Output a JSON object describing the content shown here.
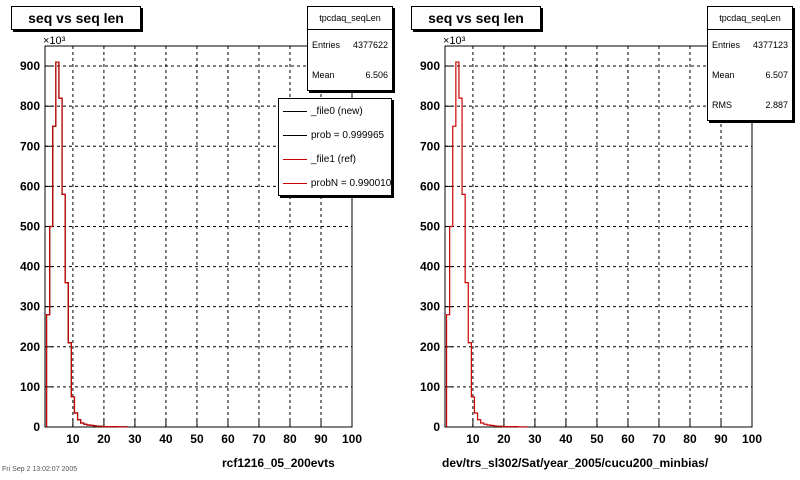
{
  "footer": "Fri Sep 2 13:02:07 2005",
  "chart_data": [
    {
      "type": "bar",
      "title": "seq vs seq len",
      "xlabel": "rcf1216_05_200evts",
      "ylabel": "",
      "multiplier": "×10³",
      "xlim": [
        1,
        100
      ],
      "ylim": [
        0,
        950
      ],
      "x_ticks": [
        "10",
        "20",
        "30",
        "40",
        "50",
        "60",
        "70",
        "80",
        "90",
        "100"
      ],
      "y_ticks": [
        "0",
        "100",
        "200",
        "300",
        "400",
        "500",
        "600",
        "700",
        "800",
        "900"
      ],
      "grid": true,
      "stats": {
        "name": "tpcdaq_seqLen",
        "entries_label": "Entries",
        "entries": "4377622",
        "mean_label": "Mean",
        "mean": "6.506"
      },
      "legend": [
        {
          "label": "_file0 (new)",
          "color": "#000000"
        },
        {
          "label": "prob = 0.999965",
          "color": "#000000"
        },
        {
          "label": "_file1 (ref)",
          "color": "#cc0000"
        },
        {
          "label": "probN = 0.990010",
          "color": "#cc0000"
        }
      ],
      "series": [
        {
          "name": "_file0 (new)",
          "color": "#000000",
          "x": [
            2,
            3,
            4,
            5,
            6,
            7,
            8,
            9,
            10,
            11,
            12,
            13,
            14,
            15,
            16,
            17,
            18,
            19,
            20,
            21,
            22,
            23,
            24,
            25,
            26,
            27
          ],
          "y": [
            280,
            500,
            750,
            910,
            820,
            580,
            360,
            210,
            75,
            35,
            18,
            10,
            7,
            5,
            4,
            3,
            2,
            2,
            1,
            1,
            1,
            1,
            1,
            0.5,
            0.5,
            0.5
          ]
        },
        {
          "name": "_file1 (ref)",
          "color": "#cc0000",
          "x": [
            2,
            3,
            4,
            5,
            6,
            7,
            8,
            9,
            10,
            11,
            12,
            13,
            14,
            15,
            16,
            17,
            18,
            19,
            20,
            21,
            22,
            23,
            24,
            25,
            26,
            27
          ],
          "y": [
            280,
            500,
            750,
            910,
            820,
            580,
            360,
            210,
            75,
            35,
            18,
            10,
            7,
            5,
            4,
            3,
            2,
            2,
            1,
            1,
            1,
            1,
            1,
            0.5,
            0.5,
            0.5
          ]
        }
      ]
    },
    {
      "type": "bar",
      "title": "seq vs seq len",
      "xlabel": "dev/trs_sl302/Sat/year_2005/cucu200_minbias/",
      "ylabel": "",
      "multiplier": "×10³",
      "xlim": [
        1,
        100
      ],
      "ylim": [
        0,
        950
      ],
      "x_ticks": [
        "10",
        "20",
        "30",
        "40",
        "50",
        "60",
        "70",
        "80",
        "90",
        "100"
      ],
      "y_ticks": [
        "0",
        "100",
        "200",
        "300",
        "400",
        "500",
        "600",
        "700",
        "800",
        "900"
      ],
      "grid": true,
      "stats": {
        "name": "tpcdaq_seqLen",
        "entries_label": "Entries",
        "entries": "4377123",
        "mean_label": "Mean",
        "mean": "6.507",
        "rms_label": "RMS",
        "rms": "2.887"
      },
      "series": [
        {
          "name": "",
          "color": "#cc0000",
          "x": [
            2,
            3,
            4,
            5,
            6,
            7,
            8,
            9,
            10,
            11,
            12,
            13,
            14,
            15,
            16,
            17,
            18,
            19,
            20,
            21,
            22,
            23,
            24,
            25,
            26,
            27
          ],
          "y": [
            280,
            500,
            750,
            910,
            820,
            580,
            360,
            210,
            75,
            35,
            18,
            10,
            7,
            5,
            4,
            3,
            2,
            2,
            1,
            1,
            1,
            1,
            1,
            0.5,
            0.5,
            0.5
          ]
        }
      ]
    }
  ]
}
